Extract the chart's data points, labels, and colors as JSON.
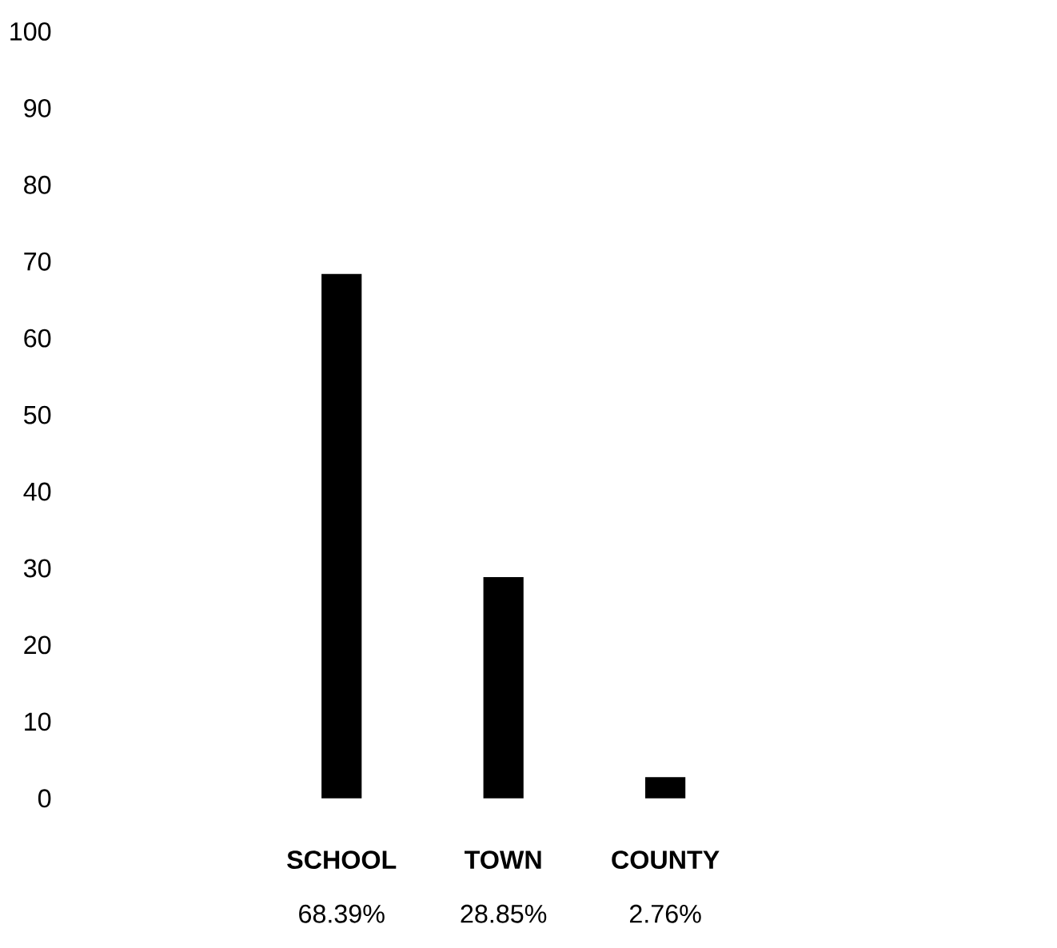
{
  "chart_data": {
    "type": "bar",
    "categories": [
      "SCHOOL",
      "TOWN",
      "COUNTY"
    ],
    "values": [
      68.39,
      28.85,
      2.76
    ],
    "value_labels": [
      "68.39%",
      "28.85%",
      "2.76%"
    ],
    "color": "#000000",
    "ylim": [
      0,
      100
    ],
    "yticks": [
      0,
      10,
      20,
      30,
      40,
      50,
      60,
      70,
      80,
      90,
      100
    ]
  }
}
